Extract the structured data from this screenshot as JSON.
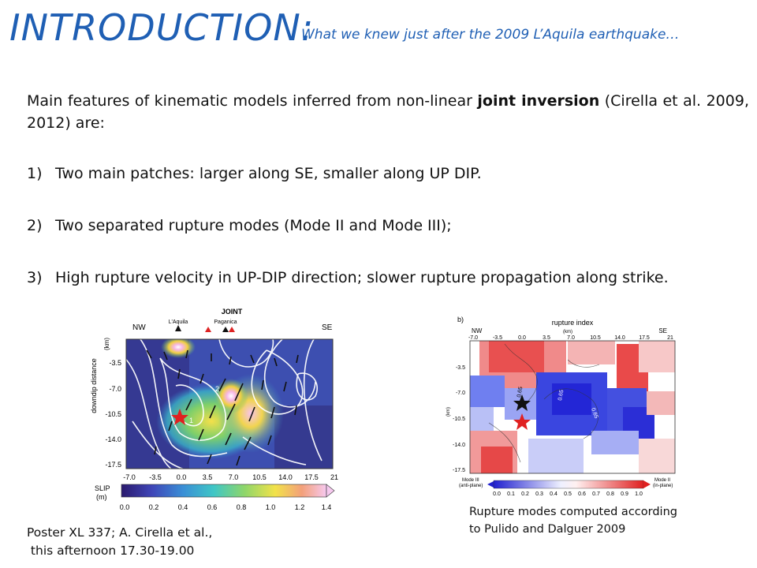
{
  "header": {
    "title": "INTRODUCTION:",
    "subtitle": "What we knew just after the 2009 L’Aquila earthquake…"
  },
  "intro": {
    "text_before": "Main features of kinematic models inferred from non-linear ",
    "bold": "joint inversion",
    "text_after": " (Cirella et al. 2009, 2012) are:"
  },
  "list": [
    {
      "num": "1)",
      "text": "Two main patches: larger along SE, smaller along UP DIP."
    },
    {
      "num": "2)",
      "text": "Two separated rupture modes (Mode II and Mode III);"
    },
    {
      "num": "3)",
      "text": "High rupture velocity in UP-DIP direction; slower rupture propagation along strike."
    }
  ],
  "fig_left": {
    "title": "JOINT",
    "nw": "NW",
    "se": "SE",
    "town1": "L'Aquila",
    "town2": "Paganica",
    "yunit": "(km)",
    "ylabel": "downdip distance",
    "yticks": [
      "-3.5",
      "-7.0",
      "-10.5",
      "-14.0",
      "-17.5"
    ],
    "xticks": [
      "-7.0",
      "-3.5",
      "0.0",
      "3.5",
      "7.0",
      "10.5",
      "14.0",
      "17.5",
      "21"
    ],
    "cbar_label1": "SLIP",
    "cbar_label2": "(m)",
    "cbar_ticks": [
      "0.0",
      "0.2",
      "0.4",
      "0.6",
      "0.8",
      "1.0",
      "1.2",
      "1.4"
    ],
    "contour_labels": [
      "1",
      "2"
    ]
  },
  "fig_right": {
    "panel": "b)",
    "title": "rupture index",
    "nw": "NW",
    "se": "SE",
    "xunit": "(km)",
    "yunit": "(km)",
    "xticks": [
      "-7.0",
      "-3.5",
      "0.0",
      "3.5",
      "7.0",
      "10.5",
      "14.0",
      "17.5",
      "21"
    ],
    "yticks": [
      "-3.5",
      "-7.0",
      "-10.5",
      "-14.0",
      "-17.5"
    ],
    "mode3_l1": "Mode III",
    "mode3_l2": "(anti-plane)",
    "mode2_l1": "Mode II",
    "mode2_l2": "(in-plane)",
    "cbar_ticks": [
      "0.0",
      "0.1",
      "0.2",
      "0.3",
      "0.4",
      "0.5",
      "0.6",
      "0.7",
      "0.8",
      "0.9",
      "1.0"
    ],
    "contour_labels": [
      "0.65",
      "0.65",
      "0.65"
    ]
  },
  "captions": {
    "right": [
      "Rupture modes computed according",
      "to Pulido and Dalguer 2009"
    ],
    "poster": [
      "Poster XL 337; A. Cirella et al.,",
      " this afternoon 17.30-19.00"
    ]
  }
}
